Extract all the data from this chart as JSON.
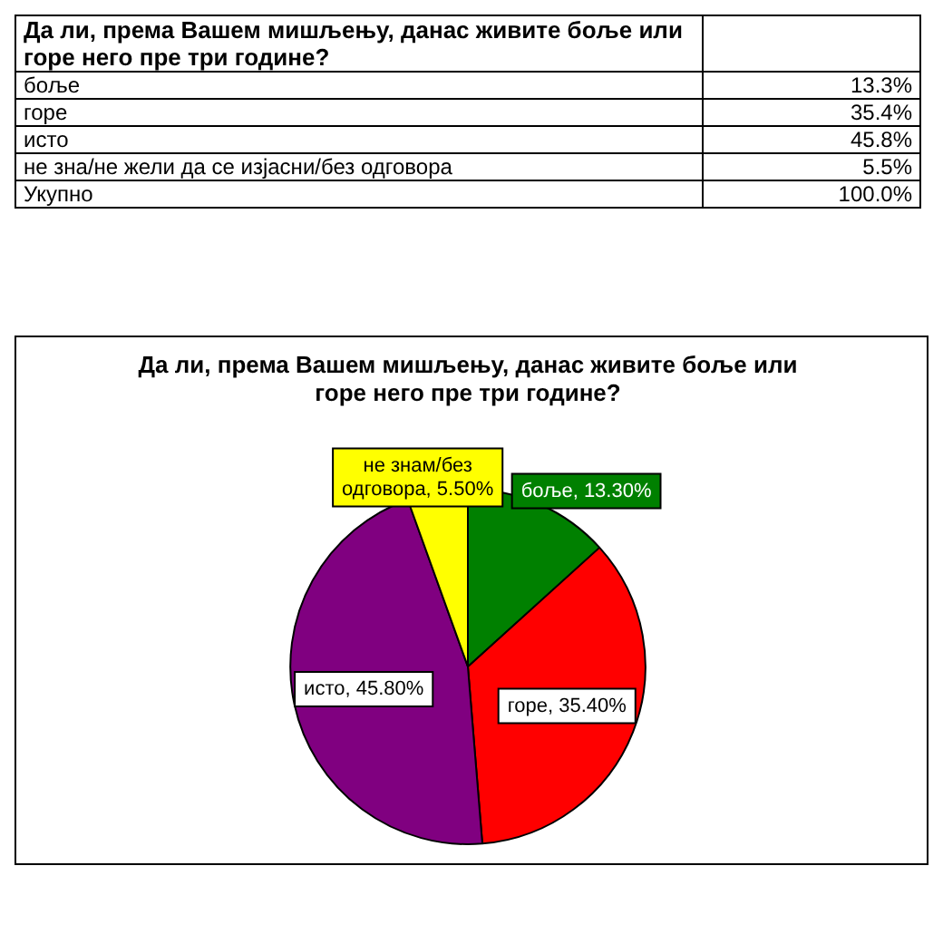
{
  "chart_data": [
    {
      "type": "other",
      "title": "Да ли, према Вашем мишљењу, данас живите боље или горе него пре три године?",
      "annotations": [
        "боље",
        "13.3%",
        "горе",
        "35.4%",
        "исто",
        "45.8%",
        "не зна/не жели да се изјасни/без одговора",
        "5.5%",
        "Укупно",
        "100.0%"
      ]
    },
    {
      "type": "pie",
      "title": "Да ли, према Вашем мишљењу, данас живите боље или горе него пре три године?",
      "categories": [
        "боље",
        "горе",
        "исто",
        "не знам/без одговора"
      ],
      "values": [
        13.3,
        35.4,
        45.8,
        5.5
      ],
      "colors": [
        "#008000",
        "#ff0000",
        "#800080",
        "#ffff00"
      ],
      "value_labels": [
        "13.30%",
        "35.40%",
        "45.80%",
        "5.50%"
      ]
    }
  ]
}
